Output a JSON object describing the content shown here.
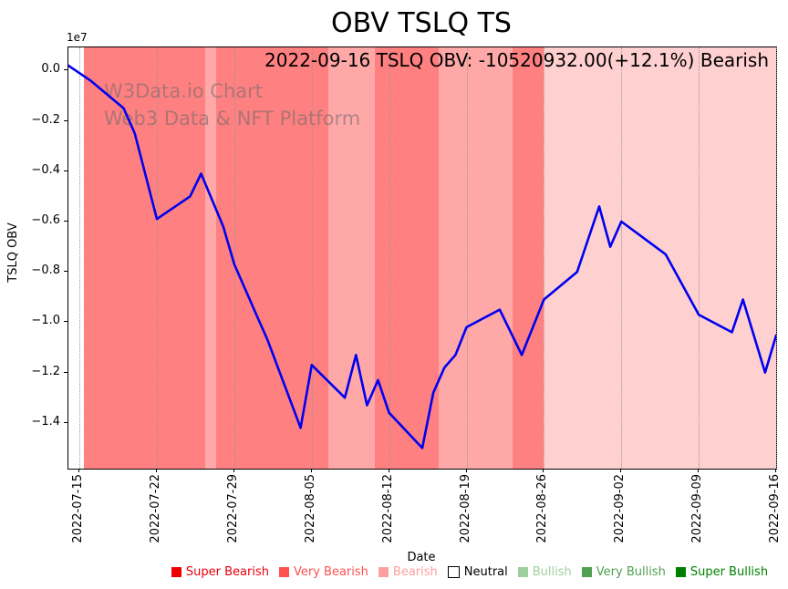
{
  "title": "OBV TSLQ TS",
  "annotation": "2022-09-16 TSLQ OBV: -10520932.00(+12.1%) Bearish",
  "watermark": {
    "line1": "W3Data.io Chart",
    "line2": "Web3 Data & NFT Platform"
  },
  "axes": {
    "xlabel": "Date",
    "ylabel": "TSLQ OBV",
    "offset_text": "1e7",
    "yticks": [
      {
        "label": "0.0",
        "value_e7": 0.0
      },
      {
        "label": "−0.2",
        "value_e7": -0.2
      },
      {
        "label": "−0.4",
        "value_e7": -0.4
      },
      {
        "label": "−0.6",
        "value_e7": -0.6
      },
      {
        "label": "−0.8",
        "value_e7": -0.8
      },
      {
        "label": "−1.0",
        "value_e7": -1.0
      },
      {
        "label": "−1.2",
        "value_e7": -1.2
      },
      {
        "label": "−1.4",
        "value_e7": -1.4
      }
    ],
    "xticks": [
      {
        "label": "2022-07-15",
        "day": 1
      },
      {
        "label": "2022-07-22",
        "day": 8
      },
      {
        "label": "2022-07-29",
        "day": 15
      },
      {
        "label": "2022-08-05",
        "day": 22
      },
      {
        "label": "2022-08-12",
        "day": 29
      },
      {
        "label": "2022-08-19",
        "day": 36
      },
      {
        "label": "2022-08-26",
        "day": 43
      },
      {
        "label": "2022-09-02",
        "day": 50
      },
      {
        "label": "2022-09-09",
        "day": 57
      },
      {
        "label": "2022-09-16",
        "day": 64
      }
    ]
  },
  "legend": {
    "items": [
      {
        "label": "Super Bearish",
        "color": "#ee0000",
        "text_color": "#e8000b",
        "bordered": false
      },
      {
        "label": "Very Bearish",
        "color": "#ff5050",
        "text_color": "#ff5050",
        "bordered": false
      },
      {
        "label": "Bearish",
        "color": "#ffa0a0",
        "text_color": "#ffa0a0",
        "bordered": false
      },
      {
        "label": "Neutral",
        "color": "#ffffff",
        "text_color": "#000000",
        "bordered": true
      },
      {
        "label": "Bullish",
        "color": "#9fcf9f",
        "text_color": "#9fcf9f",
        "bordered": false
      },
      {
        "label": "Very Bullish",
        "color": "#50a050",
        "text_color": "#50a050",
        "bordered": false
      },
      {
        "label": "Super Bullish",
        "color": "#008000",
        "text_color": "#008000",
        "bordered": false
      }
    ]
  },
  "chart_data": {
    "type": "line",
    "title": "OBV TSLQ TS",
    "xlabel": "Date",
    "ylabel": "TSLQ OBV",
    "y_unit": "1e7 (y values below are in units of 10,000,000)",
    "x_axis_note": "day = offset from 2022-07-14 (day 0) to 2022-09-16 (day 64)",
    "ylim_e7": [
      -1.582,
      0.092
    ],
    "x_span_days": 64,
    "grid": "vertical dotted weekly gridlines",
    "legend_position": "bottom, horizontal",
    "series": [
      {
        "name": "TSLQ OBV",
        "color": "#0000f0",
        "points": [
          {
            "date": "2022-07-14",
            "day": 0,
            "value_e7": 0.02
          },
          {
            "date": "2022-07-16",
            "day": 2,
            "value_e7": -0.04
          },
          {
            "date": "2022-07-19",
            "day": 5,
            "value_e7": -0.15
          },
          {
            "date": "2022-07-20",
            "day": 6,
            "value_e7": -0.25
          },
          {
            "date": "2022-07-22",
            "day": 8,
            "value_e7": -0.59
          },
          {
            "date": "2022-07-25",
            "day": 11,
            "value_e7": -0.5
          },
          {
            "date": "2022-07-26",
            "day": 12,
            "value_e7": -0.41
          },
          {
            "date": "2022-07-28",
            "day": 14,
            "value_e7": -0.62
          },
          {
            "date": "2022-07-29",
            "day": 15,
            "value_e7": -0.77
          },
          {
            "date": "2022-07-31",
            "day": 17,
            "value_e7": -0.97
          },
          {
            "date": "2022-08-01",
            "day": 18,
            "value_e7": -1.07
          },
          {
            "date": "2022-08-04",
            "day": 21,
            "value_e7": -1.42
          },
          {
            "date": "2022-08-05",
            "day": 22,
            "value_e7": -1.17
          },
          {
            "date": "2022-08-08",
            "day": 25,
            "value_e7": -1.3
          },
          {
            "date": "2022-08-09",
            "day": 26,
            "value_e7": -1.13
          },
          {
            "date": "2022-08-10",
            "day": 27,
            "value_e7": -1.33
          },
          {
            "date": "2022-08-11",
            "day": 28,
            "value_e7": -1.23
          },
          {
            "date": "2022-08-12",
            "day": 29,
            "value_e7": -1.36
          },
          {
            "date": "2022-08-15",
            "day": 32,
            "value_e7": -1.5
          },
          {
            "date": "2022-08-16",
            "day": 33,
            "value_e7": -1.28
          },
          {
            "date": "2022-08-17",
            "day": 34,
            "value_e7": -1.18
          },
          {
            "date": "2022-08-18",
            "day": 35,
            "value_e7": -1.13
          },
          {
            "date": "2022-08-19",
            "day": 36,
            "value_e7": -1.02
          },
          {
            "date": "2022-08-22",
            "day": 39,
            "value_e7": -0.95
          },
          {
            "date": "2022-08-24",
            "day": 41,
            "value_e7": -1.13
          },
          {
            "date": "2022-08-26",
            "day": 43,
            "value_e7": -0.91
          },
          {
            "date": "2022-08-29",
            "day": 46,
            "value_e7": -0.8
          },
          {
            "date": "2022-08-31",
            "day": 48,
            "value_e7": -0.54
          },
          {
            "date": "2022-09-01",
            "day": 49,
            "value_e7": -0.7
          },
          {
            "date": "2022-09-02",
            "day": 50,
            "value_e7": -0.6
          },
          {
            "date": "2022-09-06",
            "day": 54,
            "value_e7": -0.73
          },
          {
            "date": "2022-09-09",
            "day": 57,
            "value_e7": -0.97
          },
          {
            "date": "2022-09-12",
            "day": 60,
            "value_e7": -1.04
          },
          {
            "date": "2022-09-13",
            "day": 61,
            "value_e7": -0.91
          },
          {
            "date": "2022-09-15",
            "day": 63,
            "value_e7": -1.2
          },
          {
            "date": "2022-09-16",
            "day": 64,
            "value_e7": -1.0520932
          }
        ]
      }
    ],
    "sentiment_bands": [
      {
        "from_day": 0,
        "to_day": 1.4,
        "label": "Neutral",
        "color": "#ffffff"
      },
      {
        "from_day": 1.4,
        "to_day": 12.4,
        "label": "Super Bearish",
        "color": "#ff8080"
      },
      {
        "from_day": 12.4,
        "to_day": 13.4,
        "label": "Very Bearish",
        "color": "#ffa8a8"
      },
      {
        "from_day": 13.4,
        "to_day": 23.5,
        "label": "Super Bearish",
        "color": "#ff8080"
      },
      {
        "from_day": 23.5,
        "to_day": 27.7,
        "label": "Very Bearish",
        "color": "#ffa8a8"
      },
      {
        "from_day": 27.7,
        "to_day": 33.5,
        "label": "Super Bearish",
        "color": "#ff8080"
      },
      {
        "from_day": 33.5,
        "to_day": 40.2,
        "label": "Very Bearish",
        "color": "#ffa8a8"
      },
      {
        "from_day": 40.2,
        "to_day": 43.0,
        "label": "Super Bearish",
        "color": "#ff8080"
      },
      {
        "from_day": 43.0,
        "to_day": 64.0,
        "label": "Bearish",
        "color": "#ffd0d0"
      }
    ],
    "last_point": {
      "date": "2022-09-16",
      "obv": -10520932.0,
      "change_pct": "+12.1%",
      "sentiment": "Bearish"
    }
  }
}
